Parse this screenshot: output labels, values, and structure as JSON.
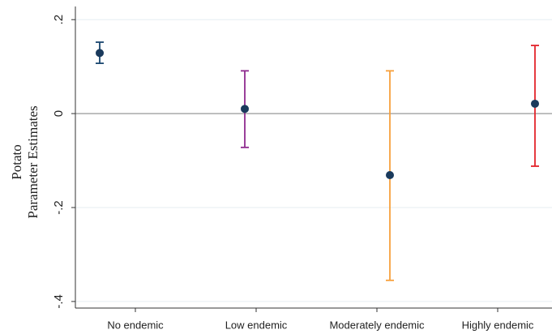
{
  "chart_data": {
    "type": "errorbar",
    "y_label": [
      "Potato",
      "Parameter Estimates"
    ],
    "categories": [
      "No endemic",
      "Low endemic",
      "Moderately endemic",
      "Highly endemic"
    ],
    "values": [
      0.129,
      0.01,
      -0.131,
      0.021
    ],
    "lower": [
      0.107,
      -0.072,
      -0.355,
      -0.112
    ],
    "upper": [
      0.152,
      0.091,
      0.091,
      0.145
    ],
    "colors": [
      "#1a476f",
      "#8e2a8e",
      "#f7a03c",
      "#e3242b"
    ],
    "marker_color": "#1a3a5c",
    "ylim": [
      -0.414,
      0.228
    ],
    "yticks": [
      {
        "value": 0.2,
        "label": ".2"
      },
      0,
      {
        "value": -0.2,
        "label": "-.2"
      },
      {
        "value": -0.4,
        "label": "-.4"
      }
    ],
    "grid": true,
    "hline": 0
  }
}
